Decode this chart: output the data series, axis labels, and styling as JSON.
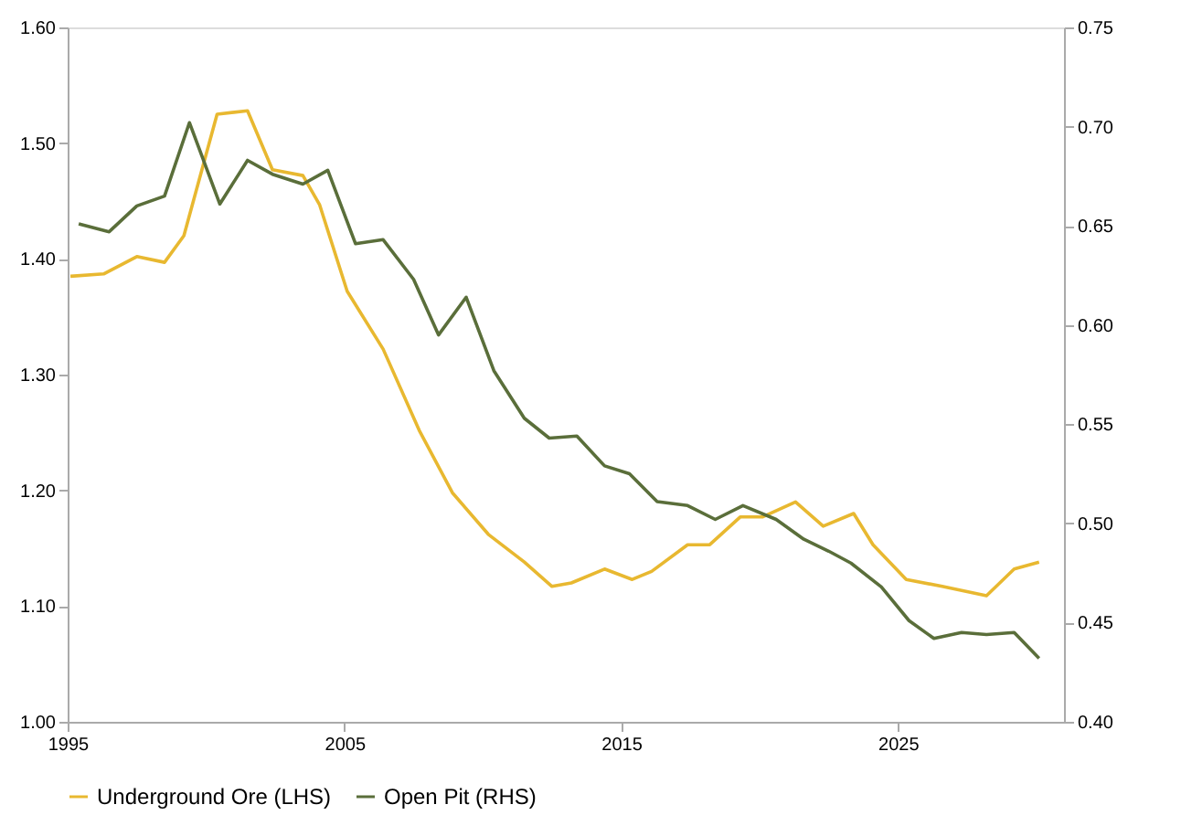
{
  "chart_data": {
    "type": "line",
    "xlim": [
      1995,
      2031
    ],
    "xticks": [
      1995,
      2005,
      2015,
      2025
    ],
    "ylim": [
      1.0,
      1.6
    ],
    "yticks": [
      {
        "value": 1.0,
        "label": "1.00"
      },
      {
        "value": 1.1,
        "label": "1.10"
      },
      {
        "value": 1.2,
        "label": "1.20"
      },
      {
        "value": 1.3,
        "label": "1.30"
      },
      {
        "value": 1.4,
        "label": "1.40"
      },
      {
        "value": 1.5,
        "label": "1.50"
      },
      {
        "value": 1.6,
        "label": "1.60"
      }
    ],
    "y2lim": [
      0.4,
      0.75
    ],
    "y2ticks": [
      {
        "value": 0.4,
        "label": "0.40"
      },
      0.45,
      {
        "value": 0.5,
        "label": "0.50"
      },
      0.55,
      {
        "value": 0.6,
        "label": "0.60"
      },
      0.65,
      {
        "value": 0.7,
        "label": "0.70"
      },
      0.75
    ],
    "grid": false,
    "legend": "bottom",
    "marker": "none",
    "line_style": "solid",
    "series": [
      {
        "name": "Underground Ore (LHS)",
        "color": "#e8b830",
        "x": [
          1995.1,
          1996.3,
          1997.5,
          1998.5,
          1999.2,
          2000.4,
          2001.5,
          2002.4,
          2003.5,
          2004.1,
          2005.1,
          2006.4,
          2007.7,
          2008.9,
          2010.2,
          2011.5,
          2012.5,
          2013.2,
          2014.4,
          2015.4,
          2016.1,
          2017.4,
          2018.2,
          2019.3,
          2020.1,
          2021.3,
          2022.3,
          2023.4,
          2024.1,
          2025.3,
          2026.6,
          2028.2,
          2029.2,
          2030.1
        ],
        "values": [
          1.385,
          1.387,
          1.402,
          1.397,
          1.42,
          1.525,
          1.528,
          1.477,
          1.472,
          1.447,
          1.372,
          1.322,
          1.252,
          1.198,
          1.162,
          1.138,
          1.117,
          1.12,
          1.132,
          1.123,
          1.13,
          1.153,
          1.153,
          1.177,
          1.177,
          1.19,
          1.169,
          1.18,
          1.153,
          1.123,
          1.117,
          1.109,
          1.132,
          1.138
        ]
      },
      {
        "name": "Open Pit (RHS)",
        "color": "#5a6e3a",
        "axis": "y2",
        "x": [
          1995.4,
          1996.5,
          1997.5,
          1998.5,
          1999.4,
          2000.5,
          2001.5,
          2002.4,
          2003.5,
          2004.4,
          2005.4,
          2006.4,
          2007.5,
          2008.4,
          2009.4,
          2010.4,
          2011.5,
          2012.4,
          2013.4,
          2014.4,
          2015.3,
          2016.3,
          2017.4,
          2018.4,
          2019.4,
          2020.6,
          2021.6,
          2022.5,
          2023.3,
          2024.4,
          2025.4,
          2026.3,
          2027.3,
          2028.2,
          2029.2,
          2030.1
        ],
        "values": [
          0.651,
          0.647,
          0.66,
          0.665,
          0.702,
          0.661,
          0.683,
          0.676,
          0.671,
          0.678,
          0.641,
          0.643,
          0.623,
          0.595,
          0.614,
          0.577,
          0.553,
          0.543,
          0.544,
          0.529,
          0.525,
          0.511,
          0.509,
          0.502,
          0.509,
          0.502,
          0.492,
          0.486,
          0.48,
          0.468,
          0.451,
          0.442,
          0.445,
          0.444,
          0.445,
          0.432
        ]
      }
    ]
  }
}
